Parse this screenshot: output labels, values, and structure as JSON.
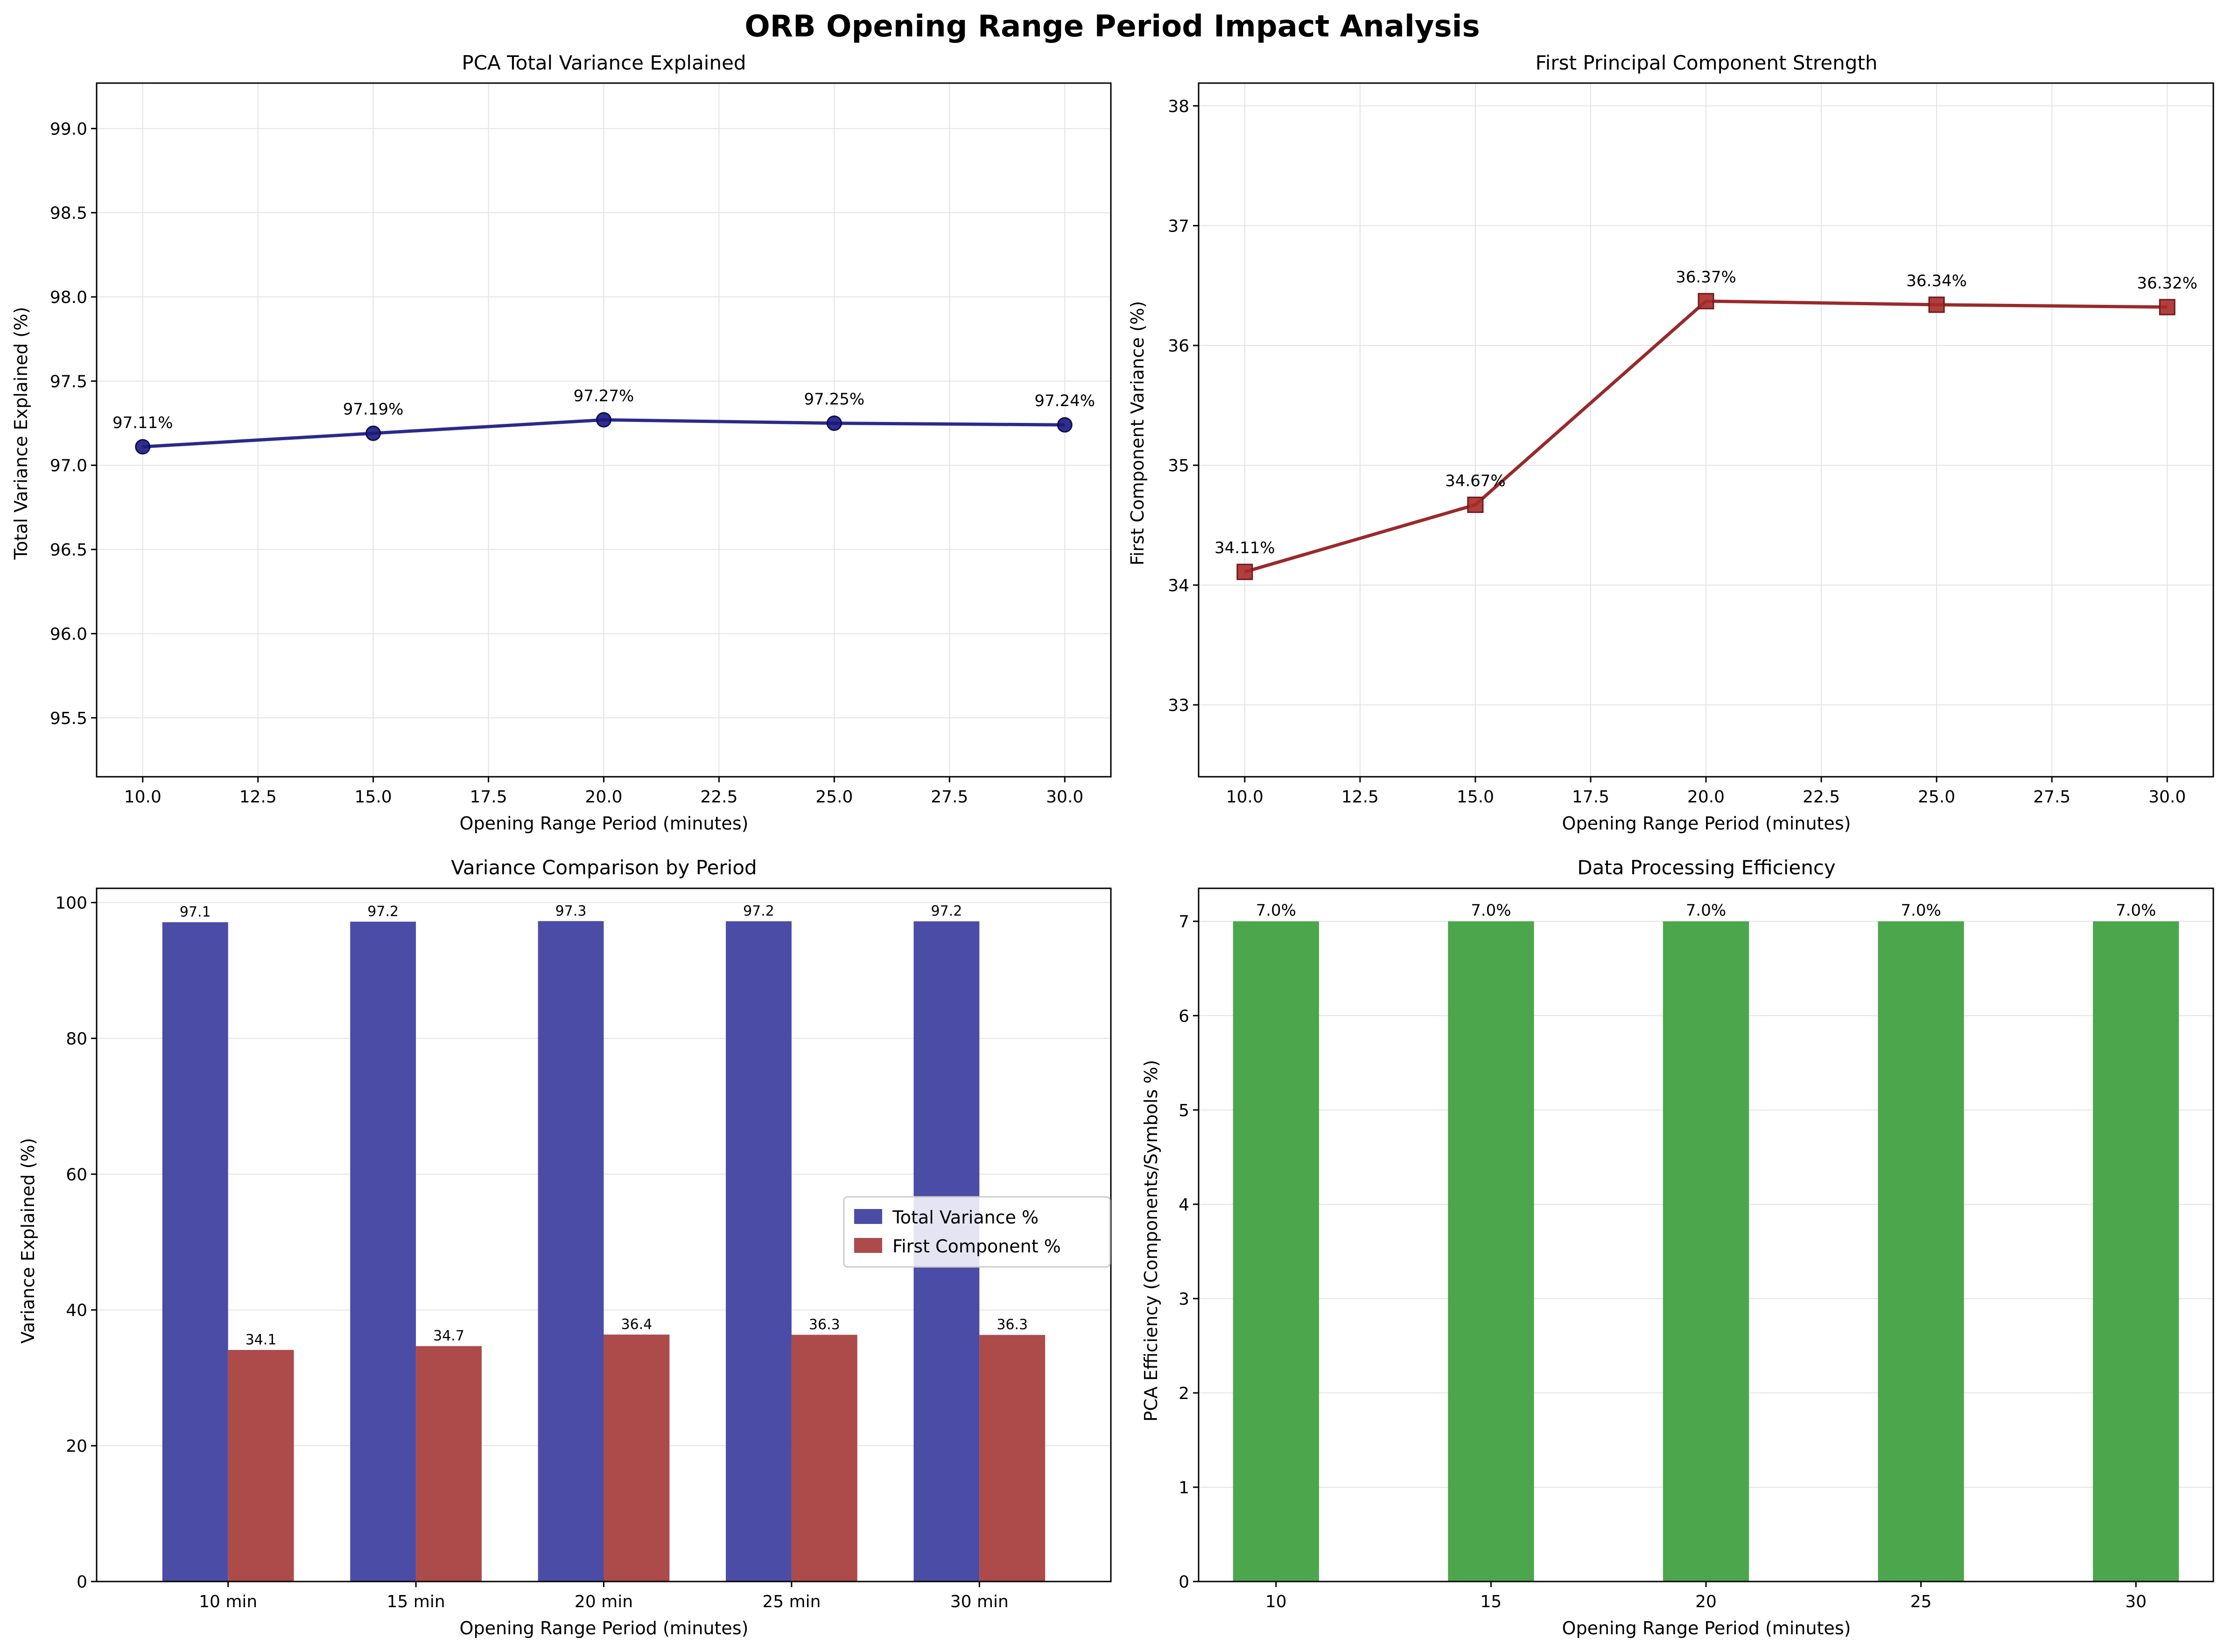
{
  "figure_title": "ORB Opening Range Period Impact Analysis",
  "colors": {
    "total_line": "#2a2a8c",
    "total_marker": "#191980",
    "first_line": "#992a2a",
    "first_marker": "#a82a2a",
    "bar_total": "#4b4ca6",
    "bar_first": "#ad4a4a",
    "bar_eff": "#4ca64c",
    "grid": "#e3e3e3"
  },
  "chart_data": [
    {
      "type": "line",
      "title": "PCA Total Variance Explained",
      "xlabel": "Opening Range Period (minutes)",
      "ylabel": "Total Variance Explained (%)",
      "x": [
        10,
        15,
        20,
        25,
        30
      ],
      "values": [
        97.11,
        97.19,
        97.27,
        97.25,
        97.24
      ],
      "point_labels": [
        "97.11%",
        "97.19%",
        "97.27%",
        "97.25%",
        "97.24%"
      ],
      "xlim": [
        9.0,
        31.0
      ],
      "ylim": [
        95.15,
        99.27
      ],
      "xticks": [
        10.0,
        12.5,
        15.0,
        17.5,
        20.0,
        22.5,
        25.0,
        27.5,
        30.0
      ],
      "xtick_labels": [
        "10.0",
        "12.5",
        "15.0",
        "17.5",
        "20.0",
        "22.5",
        "25.0",
        "27.5",
        "30.0"
      ],
      "yticks": [
        95.5,
        96.0,
        96.5,
        97.0,
        97.5,
        98.0,
        98.5,
        99.0
      ],
      "ytick_labels": [
        "95.5",
        "96.0",
        "96.5",
        "97.0",
        "97.5",
        "98.0",
        "98.5",
        "99.0"
      ],
      "marker": "circle",
      "grid": true
    },
    {
      "type": "line",
      "title": "First Principal Component Strength",
      "xlabel": "Opening Range Period (minutes)",
      "ylabel": "First Component Variance (%)",
      "x": [
        10,
        15,
        20,
        25,
        30
      ],
      "values": [
        34.11,
        34.67,
        36.37,
        36.34,
        36.32
      ],
      "point_labels": [
        "34.11%",
        "34.67%",
        "36.37%",
        "36.34%",
        "36.32%"
      ],
      "xlim": [
        9.0,
        31.0
      ],
      "ylim": [
        32.4,
        38.19
      ],
      "xticks": [
        10.0,
        12.5,
        15.0,
        17.5,
        20.0,
        22.5,
        25.0,
        27.5,
        30.0
      ],
      "xtick_labels": [
        "10.0",
        "12.5",
        "15.0",
        "17.5",
        "20.0",
        "22.5",
        "25.0",
        "27.5",
        "30.0"
      ],
      "yticks": [
        33,
        34,
        35,
        36,
        37,
        38
      ],
      "ytick_labels": [
        "33",
        "34",
        "35",
        "36",
        "37",
        "38"
      ],
      "marker": "square",
      "grid": true
    },
    {
      "type": "bar",
      "title": "Variance Comparison by Period",
      "xlabel": "Opening Range Period (minutes)",
      "ylabel": "Variance Explained (%)",
      "categories": [
        "10 min",
        "15 min",
        "20 min",
        "25 min",
        "30 min"
      ],
      "series": [
        {
          "name": "Total Variance %",
          "values": [
            97.11,
            97.19,
            97.27,
            97.25,
            97.24
          ],
          "labels": [
            "97.1",
            "97.2",
            "97.3",
            "97.2",
            "97.2"
          ]
        },
        {
          "name": "First Component %",
          "values": [
            34.11,
            34.67,
            36.37,
            36.34,
            36.32
          ],
          "labels": [
            "34.1",
            "34.7",
            "36.4",
            "36.3",
            "36.3"
          ]
        }
      ],
      "ylim": [
        0,
        102.1
      ],
      "yticks": [
        0,
        20,
        40,
        60,
        80,
        100
      ],
      "ytick_labels": [
        "0",
        "20",
        "40",
        "60",
        "80",
        "100"
      ],
      "legend": "center-right",
      "grid": true
    },
    {
      "type": "bar",
      "title": "Data Processing Efficiency",
      "xlabel": "Opening Range Period (minutes)",
      "ylabel": "PCA Efficiency (Components/Symbols %)",
      "categories": [
        "10",
        "15",
        "20",
        "25",
        "30"
      ],
      "x": [
        10,
        15,
        20,
        25,
        30
      ],
      "values": [
        7.0,
        7.0,
        7.0,
        7.0,
        7.0
      ],
      "labels": [
        "7.0%",
        "7.0%",
        "7.0%",
        "7.0%",
        "7.0%"
      ],
      "xlim": [
        8.2,
        31.8
      ],
      "ylim": [
        0,
        7.35
      ],
      "yticks": [
        0,
        1,
        2,
        3,
        4,
        5,
        6,
        7
      ],
      "ytick_labels": [
        "0",
        "1",
        "2",
        "3",
        "4",
        "5",
        "6",
        "7"
      ],
      "grid": true
    }
  ]
}
